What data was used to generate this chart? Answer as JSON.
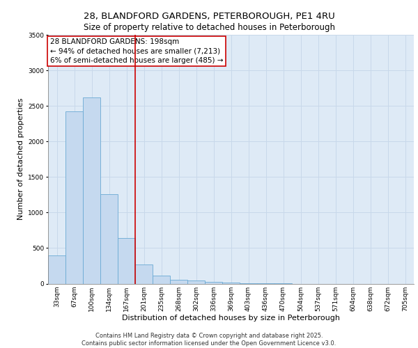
{
  "title_line1": "28, BLANDFORD GARDENS, PETERBOROUGH, PE1 4RU",
  "title_line2": "Size of property relative to detached houses in Peterborough",
  "xlabel": "Distribution of detached houses by size in Peterborough",
  "ylabel": "Number of detached properties",
  "bin_labels": [
    "33sqm",
    "67sqm",
    "100sqm",
    "134sqm",
    "167sqm",
    "201sqm",
    "235sqm",
    "268sqm",
    "302sqm",
    "336sqm",
    "369sqm",
    "403sqm",
    "436sqm",
    "470sqm",
    "504sqm",
    "537sqm",
    "571sqm",
    "604sqm",
    "638sqm",
    "672sqm",
    "705sqm"
  ],
  "bar_heights": [
    400,
    2420,
    2620,
    1260,
    640,
    270,
    110,
    55,
    40,
    25,
    10,
    5,
    2,
    1,
    0,
    0,
    0,
    0,
    0,
    0,
    0
  ],
  "bar_color": "#c5d9ef",
  "bar_edge_color": "#6aaad4",
  "red_line_x": 5,
  "red_line_color": "#cc0000",
  "annotation_text": "28 BLANDFORD GARDENS: 198sqm\n← 94% of detached houses are smaller (7,213)\n6% of semi-detached houses are larger (485) →",
  "annotation_box_color": "#ffffff",
  "annotation_box_edge": "#cc0000",
  "ylim": [
    0,
    3500
  ],
  "yticks": [
    0,
    500,
    1000,
    1500,
    2000,
    2500,
    3000,
    3500
  ],
  "grid_color": "#c8d8ea",
  "background_color": "#deeaf6",
  "footer_text": "Contains HM Land Registry data © Crown copyright and database right 2025.\nContains public sector information licensed under the Open Government Licence v3.0.",
  "title_fontsize": 9.5,
  "subtitle_fontsize": 8.5,
  "axis_label_fontsize": 8,
  "tick_fontsize": 6.5,
  "annotation_fontsize": 7.5,
  "footer_fontsize": 6
}
